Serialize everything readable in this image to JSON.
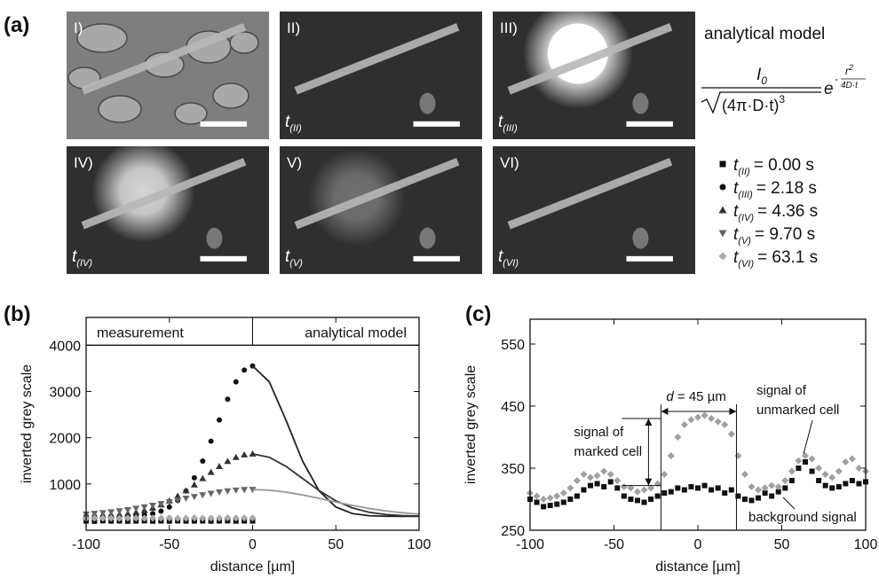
{
  "panel_labels": [
    "(a)",
    "(b)",
    "(c)"
  ],
  "images": [
    {
      "label": "I)"
    },
    {
      "label": "II)",
      "time": "t",
      "time_sub": "(II)"
    },
    {
      "label": "III)",
      "time": "t",
      "time_sub": "(III)"
    },
    {
      "label": "IV)",
      "time": "t",
      "time_sub": "(IV)"
    },
    {
      "label": "V)",
      "time": "t",
      "time_sub": "(V)"
    },
    {
      "label": "VI)",
      "time": "t",
      "time_sub": "(VI)"
    }
  ],
  "model": {
    "title": "analytical model",
    "numerator": "I",
    "numerator_sub": "0",
    "radicand": "(4π·D·t)",
    "radicand_power": "3",
    "base": "e",
    "exponent_sign": "-",
    "exponent_num": "r",
    "exponent_num_power": "2",
    "exponent_den": "4D·t"
  },
  "chart_data": [
    {
      "type": "scatter",
      "xlabel": "distance [µm]",
      "ylabel": "inverted grey scale",
      "xlim": [
        -100,
        100
      ],
      "xticks": [
        -100,
        -50,
        0,
        50,
        100
      ],
      "ylim": [
        0,
        4600
      ],
      "yticks": [
        1000,
        2000,
        3000,
        4000
      ],
      "annotations": [
        "measurement",
        "analytical model"
      ],
      "x": [
        -100,
        -95,
        -90,
        -85,
        -80,
        -75,
        -70,
        -65,
        -60,
        -55,
        -50,
        -45,
        -40,
        -35,
        -30,
        -25,
        -20,
        -15,
        -10,
        -5,
        0
      ],
      "series": [
        {
          "legend_main": "t",
          "legend_sub": "(II)",
          "legend_text": "= 0.00 s",
          "marker": "square",
          "color": "#111111",
          "values": [
            200,
            195,
            205,
            198,
            202,
            196,
            200,
            204,
            198,
            201,
            197,
            203,
            199,
            200,
            202,
            198,
            201,
            204,
            199,
            202,
            200
          ]
        },
        {
          "legend_main": "t",
          "legend_sub": "(III)",
          "legend_text": "= 2.18 s",
          "marker": "circle",
          "color": "#111111",
          "values": [
            300,
            300,
            300,
            302,
            305,
            305,
            314,
            330,
            360,
            413,
            502,
            641,
            849,
            1133,
            1496,
            1925,
            2384,
            2831,
            3209,
            3462,
            3550
          ]
        },
        {
          "legend_main": "t",
          "legend_sub": "(IV)",
          "legend_text": "= 4.36 s",
          "marker": "up",
          "color": "#333333",
          "values": [
            305,
            309,
            315,
            324,
            339,
            359,
            389,
            429,
            482,
            551,
            636,
            739,
            855,
            983,
            1119,
            1254,
            1381,
            1491,
            1577,
            1631,
            1650
          ]
        },
        {
          "legend_main": "t",
          "legend_sub": "(V)",
          "legend_text": "= 9.70 s",
          "marker": "down",
          "color": "#666666",
          "values": [
            348,
            361,
            377,
            395,
            417,
            442,
            471,
            502,
            536,
            572,
            610,
            650,
            689,
            727,
            763,
            796,
            825,
            848,
            866,
            877,
            880
          ]
        },
        {
          "legend_main": "t",
          "legend_sub": "(VI)",
          "legend_text": "= 63.1 s",
          "marker": "diamond",
          "color": "#aaaaaa",
          "values": [
            255,
            260,
            258,
            262,
            256,
            260,
            264,
            258,
            262,
            260,
            265,
            258,
            262,
            266,
            260,
            264,
            262,
            268,
            263,
            266,
            265
          ]
        },
        {
          "style": "line",
          "color": "#222222",
          "x": [
            0,
            10,
            20,
            30,
            40,
            50,
            60,
            70,
            80,
            90,
            100
          ],
          "values": [
            3550,
            3209,
            2384,
            1496,
            849,
            502,
            360,
            314,
            302,
            300,
            300
          ]
        },
        {
          "style": "line",
          "color": "#333333",
          "x": [
            0,
            10,
            20,
            30,
            40,
            50,
            60,
            70,
            80,
            90,
            100
          ],
          "values": [
            1650,
            1577,
            1381,
            1119,
            855,
            636,
            482,
            389,
            339,
            315,
            305
          ]
        },
        {
          "style": "line",
          "color": "#999999",
          "x": [
            0,
            10,
            20,
            30,
            40,
            50,
            60,
            70,
            80,
            90,
            100
          ],
          "values": [
            880,
            866,
            825,
            763,
            689,
            610,
            536,
            471,
            417,
            377,
            348
          ]
        }
      ]
    },
    {
      "type": "scatter",
      "xlabel": "distance [µm]",
      "ylabel": "inverted grey scale",
      "xlim": [
        -100,
        100
      ],
      "xticks": [
        -100,
        -50,
        0,
        50,
        100
      ],
      "ylim": [
        250,
        590
      ],
      "yticks": [
        250,
        350,
        450,
        550
      ],
      "x": [
        -100,
        -96,
        -92,
        -88,
        -84,
        -80,
        -76,
        -72,
        -68,
        -64,
        -60,
        -56,
        -52,
        -48,
        -44,
        -40,
        -36,
        -32,
        -28,
        -24,
        -20,
        -16,
        -12,
        -8,
        -4,
        0,
        4,
        8,
        12,
        16,
        20,
        24,
        28,
        32,
        36,
        40,
        44,
        48,
        52,
        56,
        60,
        64,
        68,
        72,
        76,
        80,
        84,
        88,
        92,
        96,
        100
      ],
      "series": [
        {
          "marker": "square",
          "color": "#111111",
          "values": [
            300,
            295,
            288,
            290,
            292,
            295,
            300,
            305,
            315,
            322,
            325,
            320,
            328,
            318,
            305,
            300,
            298,
            295,
            300,
            305,
            310,
            312,
            318,
            315,
            320,
            318,
            322,
            315,
            318,
            310,
            315,
            305,
            300,
            298,
            302,
            310,
            305,
            312,
            318,
            330,
            350,
            360,
            345,
            330,
            322,
            318,
            320,
            325,
            330,
            325,
            328
          ]
        },
        {
          "marker": "diamond",
          "color": "#a0a0a0",
          "values": [
            310,
            305,
            300,
            302,
            305,
            310,
            318,
            330,
            340,
            335,
            338,
            345,
            340,
            330,
            320,
            318,
            312,
            315,
            318,
            325,
            340,
            370,
            400,
            420,
            428,
            432,
            435,
            430,
            425,
            420,
            405,
            370,
            340,
            320,
            315,
            318,
            322,
            320,
            330,
            345,
            362,
            370,
            365,
            350,
            340,
            335,
            345,
            360,
            365,
            350,
            345
          ]
        }
      ],
      "guides_x": [
        -22,
        23
      ],
      "guides_y": [
        430,
        322
      ],
      "annotations": {
        "distance_var": "d",
        "distance_text": " = 45 µm",
        "marked": [
          "signal of",
          "marked cell"
        ],
        "unmarked": [
          "signal of",
          "unmarked cell"
        ],
        "background": "background signal"
      }
    }
  ]
}
